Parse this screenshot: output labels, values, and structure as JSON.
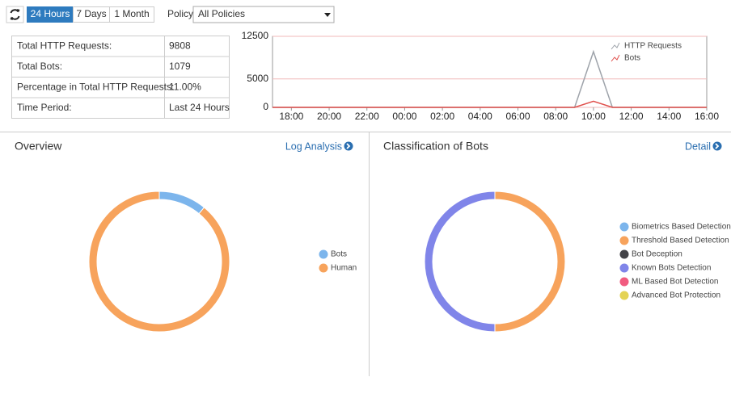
{
  "toolbar": {
    "ranges": [
      "24 Hours",
      "7 Days",
      "1 Month"
    ],
    "policy_label": "Policy",
    "policy_value": "All Policies"
  },
  "summary": {
    "rows": [
      [
        "Total HTTP Requests:",
        "9808"
      ],
      [
        "Total Bots:",
        "1079"
      ],
      [
        "Percentage in Total HTTP Requests:",
        "11.00%"
      ],
      [
        "Time Period:",
        "Last 24 Hours"
      ]
    ]
  },
  "chart_data": [
    {
      "type": "line",
      "categories": [
        null,
        "18:00",
        null,
        "20:00",
        null,
        "22:00",
        null,
        "00:00",
        null,
        "02:00",
        null,
        "04:00",
        null,
        "06:00",
        null,
        "08:00",
        null,
        "10:00",
        null,
        "12:00",
        null,
        "14:00",
        null,
        "16:00"
      ],
      "series": [
        {
          "name": "HTTP Requests",
          "color": "#9ea3aa",
          "values": [
            0,
            0,
            0,
            0,
            0,
            0,
            0,
            0,
            0,
            0,
            0,
            0,
            0,
            0,
            0,
            0,
            0,
            9808,
            0,
            0,
            0,
            0,
            0,
            0
          ]
        },
        {
          "name": "Bots",
          "color": "#e0504c",
          "values": [
            0,
            0,
            0,
            0,
            0,
            0,
            0,
            0,
            0,
            0,
            0,
            0,
            0,
            0,
            0,
            0,
            0,
            1079,
            0,
            0,
            0,
            0,
            0,
            0
          ]
        }
      ],
      "ylim": [
        0,
        12500
      ],
      "yticks": [
        0,
        5000,
        12500
      ],
      "grid": true,
      "legend": "top-right"
    },
    {
      "type": "pie",
      "title": "Overview",
      "link": "Log Analysis",
      "categories": [
        "Bots",
        "Human"
      ],
      "values": [
        11,
        89
      ],
      "colors": [
        "#7cb5ec",
        "#f7a35c"
      ]
    },
    {
      "type": "pie",
      "title": "Classification of Bots",
      "link": "Detail",
      "categories": [
        "Biometrics Based Detection",
        "Threshold Based Detection",
        "Bot Deception",
        "Known Bots Detection",
        "ML Based Bot Detection",
        "Advanced Bot Protection"
      ],
      "values": [
        0,
        50,
        0,
        50,
        0,
        0
      ],
      "colors": [
        "#7cb5ec",
        "#f7a35c",
        "#434348",
        "#8085e9",
        "#f15c80",
        "#e4d354"
      ]
    }
  ]
}
